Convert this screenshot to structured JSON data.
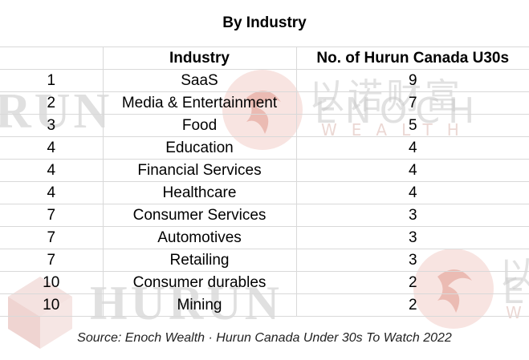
{
  "title": "By Industry",
  "columns": [
    "",
    "Industry",
    "No. of Hurun Canada U30s"
  ],
  "rows": [
    {
      "rank": "1",
      "industry": "SaaS",
      "count": "9"
    },
    {
      "rank": "2",
      "industry": "Media & Entertainment",
      "count": "7"
    },
    {
      "rank": "3",
      "industry": "Food",
      "count": "5"
    },
    {
      "rank": "4",
      "industry": "Education",
      "count": "4"
    },
    {
      "rank": "4",
      "industry": "Financial Services",
      "count": "4"
    },
    {
      "rank": "4",
      "industry": "Healthcare",
      "count": "4"
    },
    {
      "rank": "7",
      "industry": "Consumer Services",
      "count": "3"
    },
    {
      "rank": "7",
      "industry": "Automotives",
      "count": "3"
    },
    {
      "rank": "7",
      "industry": "Retailing",
      "count": "3"
    },
    {
      "rank": "10",
      "industry": "Consumer durables",
      "count": "2"
    },
    {
      "rank": "10",
      "industry": "Mining",
      "count": "2"
    }
  ],
  "source": "Source: Enoch Wealth · Hurun Canada Under 30s To Watch 2022",
  "watermarks": {
    "hurun_1": "RUN",
    "hurun_2": "HURUN",
    "enoch_cjk": "以诺财富",
    "enoch": "ENOCH",
    "wealth": "WEALTH",
    "enoch_cjk_2": "以",
    "enoch_2": "E",
    "wealth_2": "W"
  },
  "colors": {
    "grid": "#d9d9d9",
    "watermark_red": "#e6a9a0",
    "watermark_gray": "#c8c8c8"
  }
}
